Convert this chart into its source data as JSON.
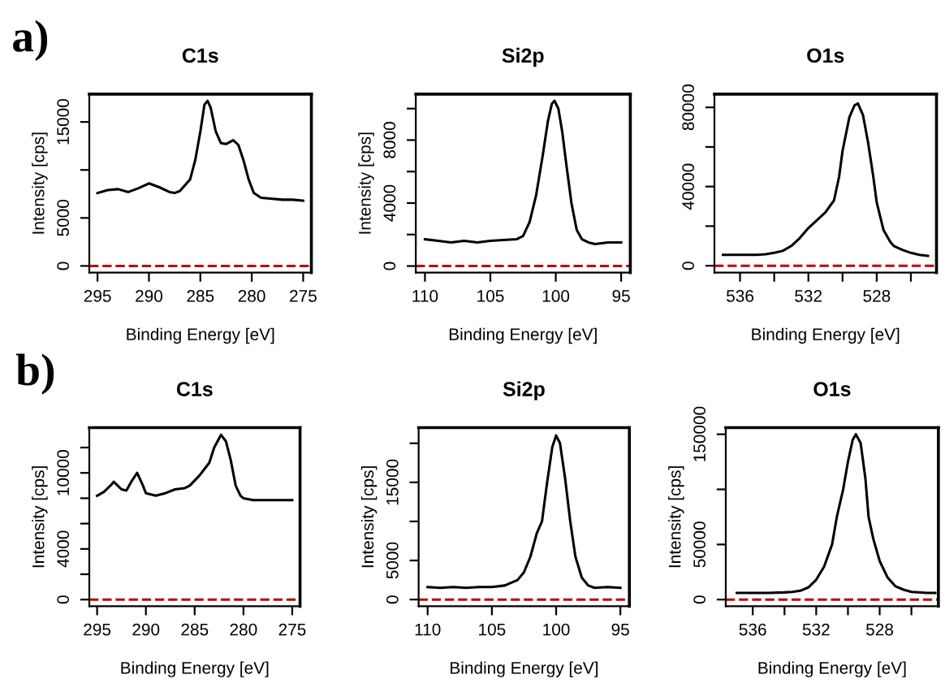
{
  "chart_data": [
    {
      "type": "line",
      "title": "C1s",
      "xlabel": "Binding Energy [eV]",
      "ylabel": "Intensity [cps]",
      "annotations": [
        "a)"
      ],
      "series": [
        {
          "color": "#000000",
          "x": [
            295,
            294,
            293,
            292,
            291,
            290,
            289,
            288,
            287.5,
            287,
            286,
            285.5,
            285,
            284.6,
            284.3,
            284,
            283.5,
            283,
            282.5,
            281.8,
            281.3,
            280.8,
            280.3,
            279.8,
            279.1,
            278,
            277,
            276,
            275
          ],
          "values": [
            7600,
            7900,
            8000,
            7700,
            8100,
            8600,
            8200,
            7700,
            7600,
            7800,
            9000,
            11000,
            14000,
            16800,
            17200,
            16500,
            14000,
            12800,
            12700,
            13100,
            12600,
            11000,
            9000,
            7600,
            7100,
            7000,
            6900,
            6900,
            6800
          ]
        }
      ],
      "xlim": [
        295.8,
        274.2
      ],
      "xticks": [
        295,
        290,
        285,
        280,
        275
      ],
      "ylim": [
        -700,
        17900
      ],
      "yticks": [
        0,
        5000,
        {
          "value": 10000,
          "label": null
        },
        15000
      ],
      "ref_lines": [
        {
          "axis": "y",
          "value": 0,
          "color": "#c00000",
          "line_style": "dashed"
        }
      ]
    },
    {
      "type": "line",
      "title": "Si2p",
      "xlabel": "Binding Energy [eV]",
      "ylabel": "Intensity [cps]",
      "series": [
        {
          "color": "#000000",
          "x": [
            110,
            109,
            108,
            107,
            106,
            105,
            104,
            103,
            102.5,
            102,
            101.5,
            101,
            100.6,
            100.3,
            100.1,
            99.8,
            99.5,
            99.2,
            98.8,
            98.4,
            98,
            97.5,
            97,
            96,
            95
          ],
          "values": [
            1700,
            1600,
            1500,
            1600,
            1500,
            1600,
            1650,
            1700,
            1900,
            2800,
            4500,
            7000,
            9200,
            10300,
            10500,
            10000,
            8500,
            6500,
            4000,
            2300,
            1700,
            1500,
            1400,
            1500,
            1500
          ]
        }
      ],
      "xlim": [
        110.7,
        94.3
      ],
      "xticks": [
        110,
        105,
        100,
        95
      ],
      "ylim": [
        -420,
        10920
      ],
      "yticks": [
        0,
        {
          "value": 2000,
          "label": null
        },
        4000,
        {
          "value": 6000,
          "label": null
        },
        8000,
        {
          "value": 10000,
          "label": null
        }
      ],
      "ref_lines": [
        {
          "axis": "y",
          "value": 0,
          "color": "#c00000",
          "line_style": "dashed"
        }
      ]
    },
    {
      "type": "line",
      "title": "O1s",
      "xlabel": "Binding Energy [eV]",
      "series": [
        {
          "color": "#000000",
          "x": [
            537,
            536,
            535,
            534.5,
            534,
            533.5,
            533,
            532.5,
            532,
            531.5,
            531,
            530.5,
            530.2,
            530,
            529.6,
            529.3,
            529.1,
            528.8,
            528.5,
            528.2,
            528,
            527.6,
            527.2,
            527,
            526.5,
            526,
            525.5,
            525
          ],
          "values": [
            5500,
            5500,
            5500,
            5800,
            6500,
            7500,
            10000,
            14000,
            19000,
            23000,
            27000,
            33000,
            45000,
            58000,
            75000,
            81000,
            82000,
            76000,
            62000,
            45000,
            32000,
            18000,
            12000,
            10000,
            8000,
            6500,
            5500,
            5000
          ]
        }
      ],
      "xlim": [
        537.5,
        524.5
      ],
      "xticks": [
        536,
        {
          "value": 534,
          "label": null
        },
        532,
        {
          "value": 530,
          "label": null
        },
        528,
        {
          "value": 526,
          "label": null
        }
      ],
      "ylim": [
        -3500,
        86700
      ],
      "yticks": [
        0,
        {
          "value": 20000,
          "label": null
        },
        40000,
        {
          "value": 60000,
          "label": null
        },
        80000
      ],
      "ref_lines": [
        {
          "axis": "y",
          "value": 0,
          "color": "#c00000",
          "line_style": "dashed"
        }
      ]
    },
    {
      "type": "line",
      "title": "C1s",
      "xlabel": "Binding Energy [eV]",
      "ylabel": "Intensity [cps]",
      "annotations": [
        "b)"
      ],
      "series": [
        {
          "color": "#000000",
          "x": [
            295,
            294.3,
            293.5,
            293.3,
            292.5,
            292,
            291.5,
            290.9,
            290.3,
            290,
            289,
            288,
            287,
            286,
            285.5,
            284.5,
            284,
            283.5,
            283,
            282.3,
            281.8,
            281.3,
            280.8,
            280.3,
            280,
            279,
            277,
            275
          ],
          "values": [
            8200,
            8500,
            9100,
            9300,
            8700,
            8600,
            9300,
            10000,
            9000,
            8400,
            8200,
            8400,
            8700,
            8800,
            9000,
            9800,
            10300,
            10800,
            12000,
            13000,
            12500,
            11000,
            9000,
            8200,
            8000,
            7850,
            7850,
            7850
          ]
        }
      ],
      "xlim": [
        295.8,
        274.2
      ],
      "xticks": [
        295,
        290,
        285,
        280,
        275
      ],
      "ylim": [
        -520,
        13570
      ],
      "yticks": [
        0,
        {
          "value": 2000,
          "label": null
        },
        4000,
        {
          "value": 6000,
          "label": null
        },
        {
          "value": 8000,
          "label": null
        },
        10000,
        {
          "value": 12000,
          "label": null
        }
      ],
      "ref_lines": [
        {
          "axis": "y",
          "value": 0,
          "color": "#c00000",
          "line_style": "dashed"
        }
      ]
    },
    {
      "type": "line",
      "title": "Si2p",
      "xlabel": "Binding Energy [eV]",
      "ylabel": "Intensity [cps]",
      "series": [
        {
          "color": "#000000",
          "x": [
            110,
            109,
            108,
            107,
            106,
            105,
            104,
            103,
            102.5,
            102,
            101.5,
            101.1,
            100.7,
            100.3,
            100,
            99.7,
            99.3,
            98.9,
            98.5,
            98,
            97.5,
            97,
            96,
            95
          ],
          "values": [
            1600,
            1500,
            1600,
            1500,
            1600,
            1600,
            1800,
            2500,
            3500,
            5500,
            8500,
            10000,
            15000,
            19500,
            21000,
            20000,
            15500,
            10000,
            5500,
            2800,
            1800,
            1500,
            1600,
            1500
          ]
        }
      ],
      "xlim": [
        110.7,
        94.3
      ],
      "xticks": [
        110,
        105,
        100,
        95
      ],
      "ylim": [
        -850,
        22000
      ],
      "yticks": [
        0,
        5000,
        {
          "value": 10000,
          "label": null
        },
        15000,
        {
          "value": 20000,
          "label": null
        }
      ],
      "ref_lines": [
        {
          "axis": "y",
          "value": 0,
          "color": "#c00000",
          "line_style": "dashed"
        }
      ]
    },
    {
      "type": "line",
      "title": "O1s",
      "xlabel": "Binding Energy [eV]",
      "ylabel": "Intensity [cps]",
      "series": [
        {
          "color": "#000000",
          "x": [
            537,
            536,
            535,
            534,
            533.5,
            533,
            532.5,
            532,
            531.5,
            531,
            530.7,
            530.3,
            530,
            529.7,
            529.5,
            529.2,
            528.9,
            528.7,
            528.4,
            528,
            527.5,
            527,
            526.5,
            526,
            525,
            524.5
          ],
          "values": [
            6000,
            6000,
            6000,
            6500,
            7000,
            8000,
            11000,
            18000,
            30000,
            50000,
            75000,
            100000,
            125000,
            145000,
            150000,
            142000,
            110000,
            75000,
            55000,
            35000,
            20000,
            12000,
            9000,
            7000,
            6000,
            6000
          ]
        }
      ],
      "xlim": [
        537.7,
        524.3
      ],
      "xticks": [
        536,
        {
          "value": 534,
          "label": null
        },
        532,
        {
          "value": 530,
          "label": null
        },
        528,
        {
          "value": 526,
          "label": null
        }
      ],
      "ylim": [
        -6000,
        156000
      ],
      "yticks": [
        0,
        50000,
        {
          "value": 100000,
          "label": null
        },
        150000
      ],
      "ref_lines": [
        {
          "axis": "y",
          "value": 0,
          "color": "#c00000",
          "line_style": "dashed"
        }
      ]
    }
  ]
}
